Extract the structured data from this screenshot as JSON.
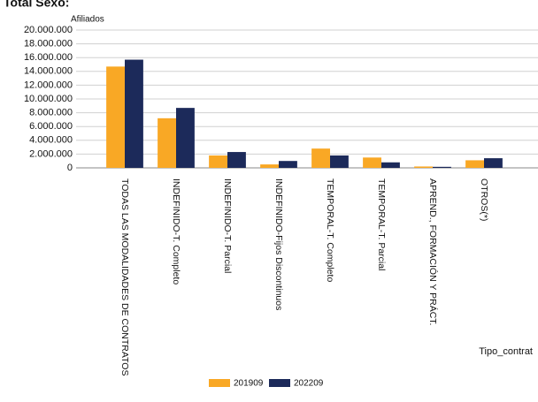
{
  "chart_data": {
    "type": "bar",
    "title": "Total Sexo:",
    "y_label": "Afiliados",
    "x_label": "Tipo_contrat",
    "categories": [
      "TODAS LAS MODALIDADES DE CONTRATOS",
      "INDEFINIDO-T. Completo",
      "INDEFINIDO-T. Parcial",
      "INDEFINIDO-Fijos Discontinuos",
      "TEMPORAL-T. Completo",
      "TEMPORAL-T. Parcial",
      "APREND., FORMACIÓN Y PRÁCT.",
      "OTROS(*)"
    ],
    "series": [
      {
        "name": "201909",
        "color": "#f9a825",
        "values": [
          14700000,
          7200000,
          1800000,
          500000,
          2800000,
          1500000,
          200000,
          1100000
        ]
      },
      {
        "name": "202209",
        "color": "#1c2a5a",
        "values": [
          15700000,
          8700000,
          2300000,
          1000000,
          1800000,
          800000,
          150000,
          1400000
        ]
      }
    ],
    "ylim": [
      0,
      20000000
    ],
    "yticks": [
      0,
      {
        "value": 2000000,
        "label": "2.000.000"
      },
      {
        "value": 4000000,
        "label": "4.000.000"
      },
      {
        "value": 6000000,
        "label": "6.000.000"
      },
      {
        "value": 8000000,
        "label": "8.000.000"
      },
      {
        "value": 10000000,
        "label": "10.000.000"
      },
      {
        "value": 12000000,
        "label": "12.000.000"
      },
      {
        "value": 14000000,
        "label": "14.000.000"
      },
      {
        "value": 16000000,
        "label": "16.000.000"
      },
      {
        "value": 18000000,
        "label": "18.000.000"
      },
      {
        "value": 20000000,
        "label": "20.000.000"
      }
    ],
    "grid": true,
    "legend": "bottom"
  }
}
